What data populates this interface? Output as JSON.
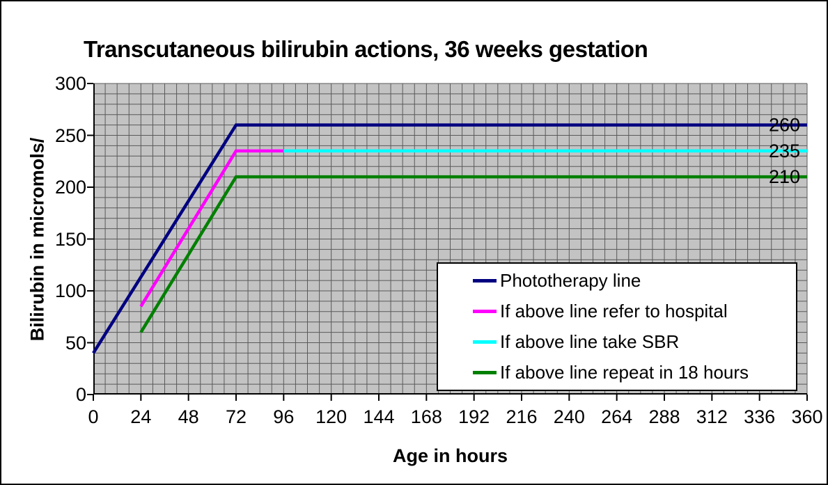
{
  "window": {
    "background": "#ffffff",
    "border_color": "#000000"
  },
  "chart_data": {
    "type": "line",
    "title": "Transcutaneous bilirubin actions, 36 weeks gestation",
    "xlabel": "Age in hours",
    "ylabel": "Bilirubin in micromols/",
    "xlim": [
      0,
      360
    ],
    "ylim": [
      0,
      300
    ],
    "xticks": [
      0,
      24,
      48,
      72,
      96,
      120,
      144,
      168,
      192,
      216,
      240,
      264,
      288,
      312,
      336,
      360
    ],
    "yticks": [
      0,
      50,
      100,
      150,
      200,
      250,
      300
    ],
    "x_minor_step": 6,
    "y_minor_step": 10,
    "grid": "minor-on",
    "plot_background": "#c3c3c3",
    "grid_color": "#595959",
    "axis_color": "#000000",
    "legend_position": "inside-bottom-right",
    "series": [
      {
        "name": "Phototherapy line",
        "color": "#000080",
        "points": [
          [
            0,
            40
          ],
          [
            72,
            260
          ],
          [
            360,
            260
          ]
        ]
      },
      {
        "name": "If above line refer to hospital",
        "color": "#ff00ff",
        "points": [
          [
            24,
            85
          ],
          [
            72,
            235
          ],
          [
            96,
            235
          ]
        ]
      },
      {
        "name": "If above line take SBR",
        "color": "#00ffff",
        "points": [
          [
            96,
            235
          ],
          [
            360,
            235
          ]
        ]
      },
      {
        "name": "If above line repeat in 18 hours",
        "color": "#008000",
        "points": [
          [
            24,
            60
          ],
          [
            72,
            210
          ],
          [
            360,
            210
          ]
        ]
      }
    ],
    "annotations": [
      {
        "text": "260",
        "x": 360,
        "y": 260
      },
      {
        "text": "235",
        "x": 360,
        "y": 235
      },
      {
        "text": "210",
        "x": 360,
        "y": 210
      }
    ]
  }
}
